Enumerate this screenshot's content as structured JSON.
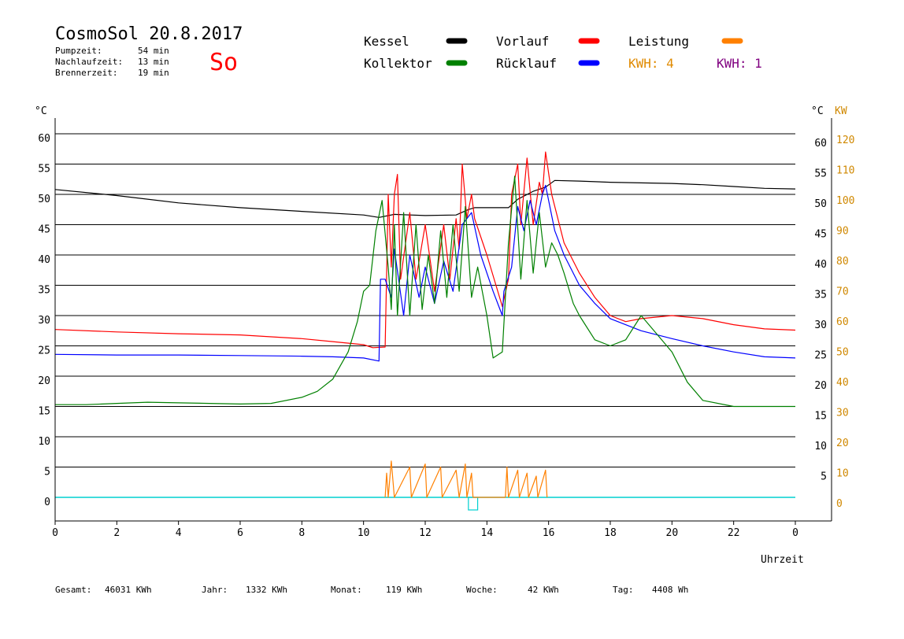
{
  "header": {
    "title": "CosmoSol 20.8.2017",
    "day": "So",
    "pump_label": "Pumpzeit:",
    "pump_value": "54 min",
    "nachlauf_label": "Nachlaufzeit:",
    "nachlauf_value": "13 min",
    "brenner_label": "Brennerzeit:",
    "brenner_value": "19 min"
  },
  "legend": {
    "items": [
      {
        "label": "Kessel",
        "color": "#000000"
      },
      {
        "label": "Kollektor",
        "color": "#008000"
      },
      {
        "label": "Vorlauf",
        "color": "#ff0000"
      },
      {
        "label": "Rücklauf",
        "color": "#0000ff"
      },
      {
        "label": "Leistung",
        "color": "#ff8000"
      }
    ],
    "kwh1": "KWH: 4",
    "kwh1_color": "#e08a00",
    "kwh2": "KWH: 1",
    "kwh2_color": "#800080"
  },
  "axes": {
    "left_unit": "°C",
    "right_unit": "°C",
    "right_unit2": "KW",
    "xlabel": "Uhrzeit",
    "left_ticks": [
      "60",
      "55",
      "50",
      "45",
      "40",
      "35",
      "30",
      "25",
      "20",
      "15",
      "10",
      "5",
      "0"
    ],
    "right_ticks": [
      "60",
      "55",
      "50",
      "45",
      "40",
      "35",
      "30",
      "25",
      "20",
      "15",
      "10",
      "5"
    ],
    "kw_ticks": [
      "120",
      "110",
      "100",
      "90",
      "80",
      "70",
      "60",
      "50",
      "40",
      "30",
      "20",
      "10",
      "0"
    ],
    "x_ticks": [
      "0",
      "2",
      "4",
      "6",
      "8",
      "10",
      "12",
      "14",
      "16",
      "18",
      "20",
      "22",
      "0"
    ]
  },
  "footer": {
    "gesamt_label": "Gesamt:",
    "gesamt_value": "46031 KWh",
    "jahr_label": "Jahr:",
    "jahr_value": "1332 KWh",
    "monat_label": "Monat:",
    "monat_value": "119 KWh",
    "woche_label": "Woche:",
    "woche_value": "42 KWh",
    "tag_label": "Tag:",
    "tag_value": "4408 Wh"
  },
  "chart_data": {
    "type": "line",
    "title": "CosmoSol 20.8.2017",
    "xlabel": "Uhrzeit",
    "ylabel": "°C",
    "xlim": [
      0,
      24
    ],
    "ylim": [
      0,
      60
    ],
    "y2label": "KW",
    "y2lim": [
      0,
      120
    ],
    "grid": true,
    "legend_position": "top",
    "series": [
      {
        "name": "Kessel",
        "color": "#000000",
        "points": [
          [
            0,
            50.8
          ],
          [
            2,
            49.8
          ],
          [
            4,
            48.6
          ],
          [
            6,
            47.8
          ],
          [
            8,
            47.2
          ],
          [
            10,
            46.6
          ],
          [
            10.5,
            46.2
          ],
          [
            11,
            46.7
          ],
          [
            12,
            46.5
          ],
          [
            13,
            46.6
          ],
          [
            13.4,
            47.5
          ],
          [
            13.6,
            47.8
          ],
          [
            14.5,
            47.8
          ],
          [
            14.7,
            47.8
          ],
          [
            15,
            49.2
          ],
          [
            15.5,
            50.5
          ],
          [
            15.9,
            51.2
          ],
          [
            16.2,
            52.3
          ],
          [
            17,
            52.2
          ],
          [
            18,
            52.0
          ],
          [
            19,
            51.9
          ],
          [
            20,
            51.8
          ],
          [
            21,
            51.6
          ],
          [
            22,
            51.3
          ],
          [
            23,
            51.0
          ],
          [
            24,
            50.9
          ]
        ]
      },
      {
        "name": "Vorlauf",
        "color": "#ff0000",
        "points": [
          [
            0,
            27.7
          ],
          [
            2,
            27.3
          ],
          [
            4,
            27.0
          ],
          [
            6,
            26.8
          ],
          [
            8,
            26.2
          ],
          [
            9,
            25.7
          ],
          [
            10,
            25.2
          ],
          [
            10.3,
            24.7
          ],
          [
            10.7,
            24.8
          ],
          [
            10.8,
            50
          ],
          [
            10.9,
            38
          ],
          [
            11,
            50
          ],
          [
            11.1,
            53.3
          ],
          [
            11.2,
            36
          ],
          [
            11.5,
            47
          ],
          [
            11.7,
            36
          ],
          [
            12,
            45
          ],
          [
            12.3,
            34
          ],
          [
            12.6,
            45
          ],
          [
            12.8,
            36
          ],
          [
            13,
            46
          ],
          [
            13.1,
            41
          ],
          [
            13.2,
            55
          ],
          [
            13.35,
            46
          ],
          [
            13.5,
            50
          ],
          [
            13.6,
            46
          ],
          [
            14,
            40
          ],
          [
            14.5,
            31.5
          ],
          [
            14.7,
            36
          ],
          [
            14.8,
            50
          ],
          [
            15,
            55
          ],
          [
            15.1,
            45
          ],
          [
            15.3,
            56
          ],
          [
            15.5,
            45
          ],
          [
            15.7,
            52
          ],
          [
            15.8,
            50
          ],
          [
            15.9,
            57
          ],
          [
            16.1,
            50
          ],
          [
            16.5,
            42
          ],
          [
            17,
            37
          ],
          [
            17.5,
            33
          ],
          [
            18,
            30
          ],
          [
            18.5,
            29
          ],
          [
            19,
            29.5
          ],
          [
            20,
            30
          ],
          [
            21,
            29.5
          ],
          [
            22,
            28.5
          ],
          [
            23,
            27.8
          ],
          [
            24,
            27.6
          ]
        ]
      },
      {
        "name": "Rücklauf",
        "color": "#0000ff",
        "points": [
          [
            0,
            23.6
          ],
          [
            2,
            23.5
          ],
          [
            4,
            23.5
          ],
          [
            6,
            23.4
          ],
          [
            8,
            23.3
          ],
          [
            9,
            23.2
          ],
          [
            10,
            23.0
          ],
          [
            10.5,
            22.5
          ],
          [
            10.55,
            36
          ],
          [
            10.7,
            36
          ],
          [
            10.9,
            33
          ],
          [
            11,
            41
          ],
          [
            11.3,
            30
          ],
          [
            11.5,
            40
          ],
          [
            11.8,
            33
          ],
          [
            12,
            38
          ],
          [
            12.3,
            32
          ],
          [
            12.6,
            39
          ],
          [
            12.9,
            34
          ],
          [
            13.2,
            45
          ],
          [
            13.5,
            47
          ],
          [
            13.8,
            40
          ],
          [
            14.2,
            34
          ],
          [
            14.5,
            30
          ],
          [
            14.55,
            34
          ],
          [
            14.8,
            38
          ],
          [
            15,
            48
          ],
          [
            15.2,
            44
          ],
          [
            15.4,
            49
          ],
          [
            15.6,
            45
          ],
          [
            15.8,
            50
          ],
          [
            15.9,
            51.5
          ],
          [
            16.2,
            44
          ],
          [
            16.5,
            40
          ],
          [
            17,
            35
          ],
          [
            17.5,
            32
          ],
          [
            18,
            29.5
          ],
          [
            19,
            27.5
          ],
          [
            20,
            26.2
          ],
          [
            21,
            25
          ],
          [
            22,
            24
          ],
          [
            23,
            23.2
          ],
          [
            24,
            23
          ]
        ]
      },
      {
        "name": "Kollektor",
        "color": "#008000",
        "points": [
          [
            0,
            15.3
          ],
          [
            1,
            15.3
          ],
          [
            2,
            15.5
          ],
          [
            3,
            15.7
          ],
          [
            4,
            15.6
          ],
          [
            5,
            15.5
          ],
          [
            6,
            15.4
          ],
          [
            7,
            15.5
          ],
          [
            8,
            16.5
          ],
          [
            8.5,
            17.5
          ],
          [
            9,
            19.5
          ],
          [
            9.5,
            24
          ],
          [
            9.8,
            29
          ],
          [
            10,
            34
          ],
          [
            10.2,
            35
          ],
          [
            10.4,
            44
          ],
          [
            10.6,
            49
          ],
          [
            10.8,
            38
          ],
          [
            10.9,
            31
          ],
          [
            11,
            45
          ],
          [
            11.1,
            30
          ],
          [
            11.3,
            47
          ],
          [
            11.5,
            30
          ],
          [
            11.7,
            45
          ],
          [
            11.9,
            31
          ],
          [
            12.1,
            40
          ],
          [
            12.3,
            32
          ],
          [
            12.5,
            44
          ],
          [
            12.7,
            33
          ],
          [
            12.9,
            45
          ],
          [
            13.1,
            34
          ],
          [
            13.3,
            48
          ],
          [
            13.5,
            33
          ],
          [
            13.7,
            38
          ],
          [
            14,
            30
          ],
          [
            14.2,
            23
          ],
          [
            14.5,
            24
          ],
          [
            14.7,
            42
          ],
          [
            14.9,
            53
          ],
          [
            15.1,
            36
          ],
          [
            15.3,
            49
          ],
          [
            15.5,
            37
          ],
          [
            15.7,
            47
          ],
          [
            15.9,
            38
          ],
          [
            16.1,
            42
          ],
          [
            16.3,
            40
          ],
          [
            16.5,
            37
          ],
          [
            16.8,
            32
          ],
          [
            17,
            30
          ],
          [
            17.5,
            26
          ],
          [
            18,
            25
          ],
          [
            18.5,
            26
          ],
          [
            19,
            30
          ],
          [
            19.5,
            27
          ],
          [
            20,
            24
          ],
          [
            20.5,
            19
          ],
          [
            21,
            16
          ],
          [
            22,
            15
          ],
          [
            23,
            15
          ],
          [
            24,
            15
          ]
        ]
      },
      {
        "name": "Leistung",
        "color": "#ff8000",
        "axis": "KW",
        "points": [
          [
            10.7,
            0
          ],
          [
            10.75,
            8
          ],
          [
            10.8,
            0
          ],
          [
            10.9,
            12
          ],
          [
            11,
            0
          ],
          [
            11.5,
            10
          ],
          [
            11.55,
            0
          ],
          [
            12,
            11
          ],
          [
            12.05,
            0
          ],
          [
            12.5,
            10
          ],
          [
            12.55,
            0
          ],
          [
            13,
            9
          ],
          [
            13.1,
            0
          ],
          [
            13.3,
            11
          ],
          [
            13.35,
            0
          ],
          [
            13.5,
            8
          ],
          [
            13.55,
            0
          ],
          [
            14.6,
            0
          ],
          [
            14.65,
            10
          ],
          [
            14.7,
            0
          ],
          [
            15,
            9
          ],
          [
            15.05,
            0
          ],
          [
            15.3,
            8
          ],
          [
            15.35,
            0
          ],
          [
            15.6,
            7
          ],
          [
            15.65,
            0
          ],
          [
            15.9,
            9
          ],
          [
            15.95,
            0
          ]
        ]
      }
    ]
  }
}
